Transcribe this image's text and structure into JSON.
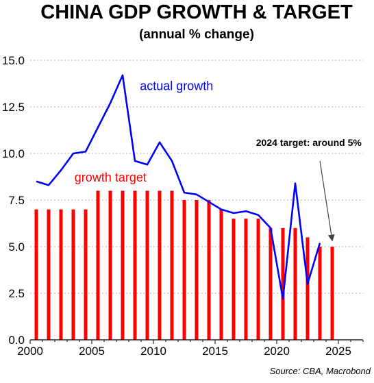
{
  "chart_data": {
    "type": "bar+line",
    "title": "CHINA GDP GROWTH & TARGET",
    "subtitle": "(annual % change)",
    "source": "Source: CBA, Macrobond",
    "xlim": [
      2000,
      2027
    ],
    "ylim": [
      0,
      15
    ],
    "x_ticks": [
      2000,
      2005,
      2010,
      2015,
      2020,
      2025
    ],
    "y_ticks": [
      "0.0",
      "2.5",
      "5.0",
      "7.5",
      "10.0",
      "12.5",
      "15.0"
    ],
    "grid": "horizontal dotted",
    "series": [
      {
        "name": "growth target",
        "type": "bar",
        "color": "#ff0000",
        "x": [
          2000,
          2001,
          2002,
          2003,
          2004,
          2005,
          2006,
          2007,
          2008,
          2009,
          2010,
          2011,
          2012,
          2013,
          2014,
          2015,
          2016,
          2017,
          2018,
          2019,
          2020,
          2021,
          2022,
          2023,
          2024
        ],
        "values": [
          7,
          7,
          7,
          7,
          7,
          8,
          8,
          8,
          8,
          8,
          8,
          8,
          7.5,
          7.5,
          7.5,
          7,
          6.5,
          6.5,
          6.5,
          6,
          6,
          6,
          5.5,
          5,
          5
        ]
      },
      {
        "name": "actual growth",
        "type": "line",
        "color": "#0000ff",
        "x": [
          2000,
          2001,
          2002,
          2003,
          2004,
          2005,
          2006,
          2007,
          2008,
          2009,
          2010,
          2011,
          2012,
          2013,
          2014,
          2015,
          2016,
          2017,
          2018,
          2019,
          2020,
          2021,
          2022,
          2023
        ],
        "values": [
          8.5,
          8.3,
          9.1,
          10.0,
          10.1,
          11.4,
          12.7,
          14.2,
          9.6,
          9.4,
          10.6,
          9.6,
          7.9,
          7.8,
          7.4,
          7.0,
          6.8,
          6.9,
          6.7,
          6.0,
          2.2,
          8.4,
          3.0,
          5.2
        ]
      }
    ],
    "annotations": [
      {
        "text": "actual growth",
        "color": "#0000ff"
      },
      {
        "text": "growth target",
        "color": "#ff0000"
      },
      {
        "text": "2024 target: around 5%",
        "color": "#000000",
        "arrow_to": [
          2024,
          5
        ]
      }
    ]
  }
}
